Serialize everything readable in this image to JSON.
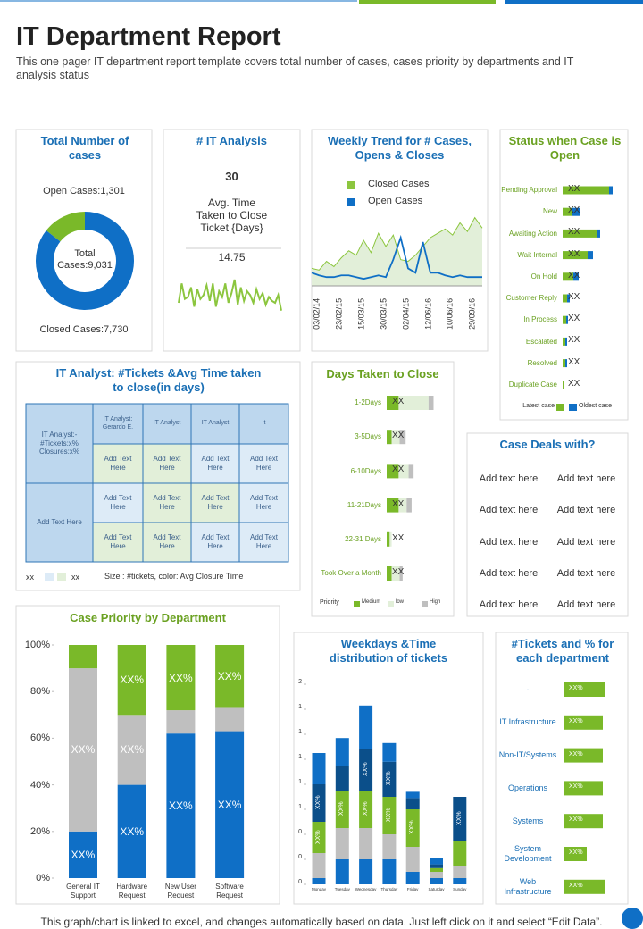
{
  "header": {
    "title": "IT Department Report",
    "subtitle": "This one pager IT department report template covers total number of cases, cases priority by departments and IT analysis status"
  },
  "total_cases": {
    "type": "donut",
    "title": "Total Number of cases",
    "segments": [
      {
        "label": "Open Cases:1,301",
        "value": 1301,
        "color": "#7ab929"
      },
      {
        "label": "Closed Cases:7,730",
        "value": 7730,
        "color": "#0f6fc6"
      }
    ],
    "center": [
      "Total",
      "Cases:9,031"
    ]
  },
  "it_analysis": {
    "type": "line",
    "title": "# IT Analysis",
    "count": 30,
    "caption": [
      "Avg. Time",
      "Taken to Close",
      "Ticket {Days}"
    ],
    "average": 14.75,
    "values": [
      12,
      22,
      14,
      15,
      20,
      10,
      19,
      14,
      16,
      21,
      13,
      22,
      10,
      18,
      15,
      22,
      12,
      17,
      24,
      11,
      20,
      13,
      18,
      16,
      12,
      19,
      14,
      17,
      11,
      15,
      13,
      12,
      16,
      8
    ],
    "ylim": [
      0,
      30
    ],
    "color": "#8cc63f"
  },
  "weekly_trend": {
    "type": "area_line",
    "title": "Weekly Trend for # Cases, Opens & Closes",
    "categories": [
      "03/02/14",
      null,
      null,
      "23/02/15",
      null,
      null,
      "15/03/15",
      null,
      null,
      "30/03/15",
      null,
      null,
      "02/04/15",
      null,
      null,
      "12/06/16",
      null,
      null,
      "10/06/16",
      null,
      null,
      "29/09/16",
      null,
      null
    ],
    "series": [
      {
        "name": "Closed Cases",
        "color": "#8cc63f",
        "values": [
          20,
          18,
          28,
          22,
          32,
          40,
          35,
          52,
          38,
          60,
          45,
          58,
          30,
          28,
          35,
          45,
          55,
          60,
          65,
          58,
          72,
          62,
          78,
          66
        ]
      },
      {
        "name": "Open Cases",
        "color": "#0f6fc6",
        "values": [
          15,
          12,
          10,
          10,
          12,
          12,
          10,
          8,
          10,
          12,
          10,
          30,
          55,
          20,
          15,
          50,
          15,
          15,
          12,
          10,
          12,
          10,
          10,
          10
        ]
      }
    ],
    "ylim": [
      0,
      100
    ]
  },
  "status_open": {
    "type": "stacked_hbar",
    "title": "Status when Case is Open",
    "categories": [
      "Pending Approval",
      "New",
      "Awaiting Action",
      "Wait Internal",
      "On Hold",
      "Customer Reply",
      "In Process",
      "Escalated",
      "Resolved",
      "Duplicate Case"
    ],
    "series": [
      {
        "name": "Latest case",
        "color": "#7ab929",
        "values": [
          52,
          10,
          38,
          28,
          12,
          5,
          4,
          3,
          3,
          1
        ]
      },
      {
        "name": "Oldest case",
        "color": "#0f6fc6",
        "values": [
          4,
          10,
          4,
          6,
          6,
          3,
          2,
          2,
          2,
          1
        ]
      }
    ],
    "bar_text": "XX",
    "xlim": [
      0,
      60
    ]
  },
  "analyst_table": {
    "title": "IT Analyst: #Tickets &Avg Time taken to close(in days)",
    "corner": "IT Analyst:- #Tickets:x% Closures:x%",
    "header": [
      "IT Analyst: Gerardo E.",
      "IT Analyst",
      "IT Analyst",
      "It"
    ],
    "row_label": "Add Text Here",
    "rows": [
      [
        "Add Text Here",
        "Add Text Here",
        "Add Text Here",
        "Add Text Here"
      ],
      [
        "Add Text Here",
        "Add Text Here",
        "Add Text Here",
        "Add Text Here"
      ],
      [
        "Add Text Here",
        "Add Text Here",
        "Add Text Here",
        "Add Text Here"
      ]
    ],
    "legend": {
      "low": "xx",
      "high": "xx",
      "caption": "Size : #tickets, color: Avg Closure Time"
    }
  },
  "days_to_close": {
    "type": "stacked_hbar",
    "title": "Days Taken to Close",
    "categories": [
      "1-2Days",
      "3-5Days",
      "6-10Days",
      "11-21Days",
      "22-31 Days",
      "Took Over a Month"
    ],
    "series": [
      {
        "name": "Medium",
        "color": "#7ab929",
        "values": [
          12,
          5,
          12,
          12,
          3,
          5
        ]
      },
      {
        "name": "low",
        "color": "#e2efd9",
        "values": [
          30,
          8,
          10,
          8,
          2,
          8
        ]
      },
      {
        "name": "High",
        "color": "#bfbfbf",
        "values": [
          5,
          6,
          5,
          5,
          0,
          3
        ]
      }
    ],
    "legend_title": "Priority",
    "bar_text": "XX",
    "xlim": [
      0,
      60
    ]
  },
  "case_deals": {
    "title": "Case Deals with?",
    "items": [
      "Add text here",
      "Add text here",
      "Add text here",
      "Add text here",
      "Add text here",
      "Add text here",
      "Add text here",
      "Add text here",
      "Add text here",
      "Add text here"
    ]
  },
  "case_priority": {
    "type": "stacked_bar",
    "title": "Case Priority by Department",
    "categories": [
      "General IT Support",
      "Hardware Request",
      "New User Request",
      "Software Request"
    ],
    "series": [
      {
        "color": "#0f6fc6",
        "values": [
          20,
          40,
          62,
          63
        ]
      },
      {
        "color": "#bfbfbf",
        "values": [
          70,
          30,
          10,
          10
        ]
      },
      {
        "color": "#7ab929",
        "values": [
          10,
          30,
          28,
          27
        ]
      }
    ],
    "bar_text": "XX%",
    "ylim": [
      0,
      100
    ],
    "yticks": [
      {
        "value": 0,
        "label": "0%"
      },
      {
        "value": 20,
        "label": "20%"
      },
      {
        "value": 40,
        "label": "40%"
      },
      {
        "value": 60,
        "label": "60%"
      },
      {
        "value": 80,
        "label": "80%"
      },
      {
        "value": 100,
        "label": "100%"
      }
    ]
  },
  "weekday_dist": {
    "type": "stacked_bar",
    "title": "Weekdays &Time distribution of tickets",
    "categories": [
      "Monday",
      "Tuesday",
      "Wednesday",
      "Thursday",
      "Friday",
      "Saturday",
      "Sunday"
    ],
    "series": [
      {
        "color": "#0f6fc6",
        "values": [
          0.05,
          0.2,
          0.2,
          0.2,
          0.1,
          0.05,
          0.05
        ]
      },
      {
        "color": "#bfbfbf",
        "values": [
          0.2,
          0.25,
          0.25,
          0.2,
          0.2,
          0.05,
          0.1
        ]
      },
      {
        "color": "#7ab929",
        "values": [
          0.25,
          0.3,
          0.3,
          0.3,
          0.3,
          0.03,
          0.2
        ]
      },
      {
        "color": "#0b4f8a",
        "values": [
          0.3,
          0.2,
          0.33,
          0.28,
          0.09,
          0.03,
          0.35
        ]
      },
      {
        "color": "#0f6fc6",
        "values": [
          0.25,
          0.22,
          0.35,
          0.15,
          0.05,
          0.05,
          0
        ]
      }
    ],
    "bar_text": "XX%",
    "ylim": [
      0,
      1.6
    ],
    "yticks": [
      {
        "value": 0,
        "label": "0"
      },
      {
        "value": 0.2,
        "label": "0"
      },
      {
        "value": 0.4,
        "label": "0"
      },
      {
        "value": 0.6,
        "label": "1"
      },
      {
        "value": 0.8,
        "label": "1"
      },
      {
        "value": 1.0,
        "label": "1"
      },
      {
        "value": 1.2,
        "label": "1"
      },
      {
        "value": 1.4,
        "label": "1"
      },
      {
        "value": 1.6,
        "label": "2"
      }
    ]
  },
  "dept_tickets": {
    "type": "hbar",
    "title": "#Tickets and % for each department",
    "categories": [
      "-",
      "IT Infrastructure",
      "Non-IT/Systems",
      "Operations",
      "Systems",
      "System Development",
      "Web Infrastructure"
    ],
    "values": [
      47,
      44,
      44,
      44,
      44,
      26,
      47
    ],
    "color": "#7ab929",
    "bar_text": "XX%",
    "xlim": [
      0,
      50
    ]
  },
  "footer": "This graph/chart is linked to excel, and changes automatically based on data. Just left click on it and select “Edit Data”."
}
